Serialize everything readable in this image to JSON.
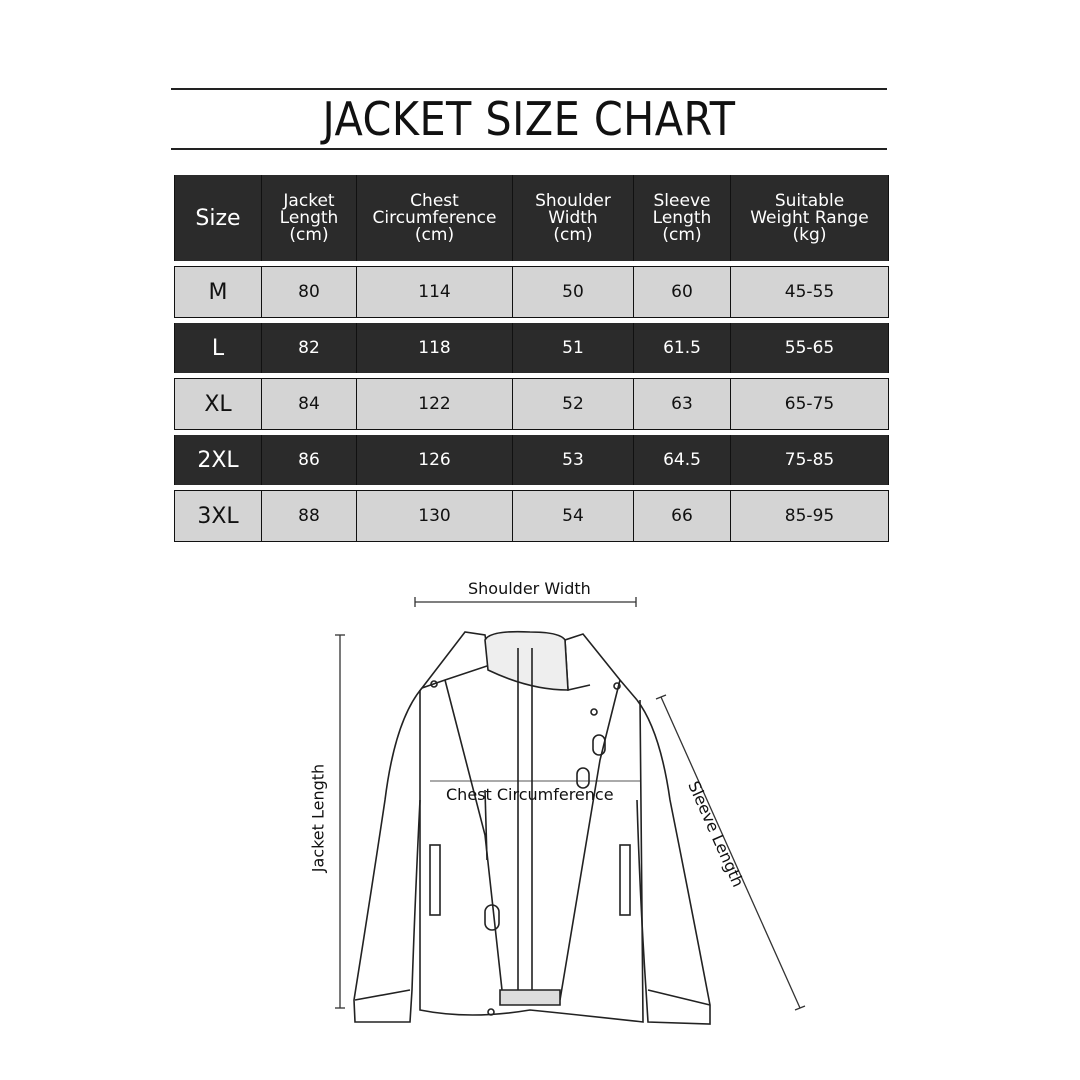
{
  "title": "JACKET SIZE CHART",
  "table": {
    "headers": [
      [
        "Size"
      ],
      [
        "Jacket",
        "Length",
        "(cm)"
      ],
      [
        "Chest",
        "Circumference",
        "(cm)"
      ],
      [
        "Shoulder",
        "Width",
        "(cm)"
      ],
      [
        "Sleeve",
        "Length",
        "(cm)"
      ],
      [
        "Suitable",
        "Weight Range",
        "(kg)"
      ]
    ],
    "rows": [
      [
        "M",
        "80",
        "114",
        "50",
        "60",
        "45-55"
      ],
      [
        "L",
        "82",
        "118",
        "51",
        "61.5",
        "55-65"
      ],
      [
        "XL",
        "84",
        "122",
        "52",
        "63",
        "65-75"
      ],
      [
        "2XL",
        "86",
        "126",
        "53",
        "64.5",
        "75-85"
      ],
      [
        "3XL",
        "88",
        "130",
        "54",
        "66",
        "85-95"
      ]
    ]
  },
  "diagram": {
    "shoulder_width": "Shoulder Width",
    "jacket_length": "Jacket Length",
    "chest": "Chest Circumference",
    "sleeve_length": "Sleeve Length"
  },
  "colors": {
    "dark_row": "#2b2b2b",
    "light_row": "#d4d4d4"
  }
}
